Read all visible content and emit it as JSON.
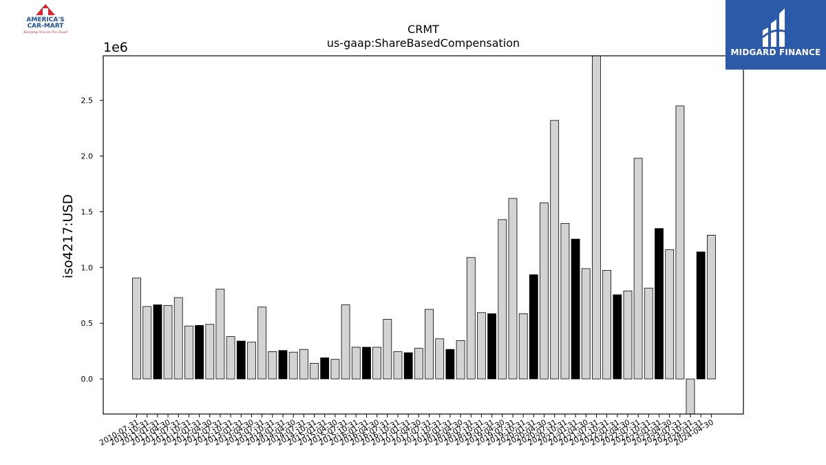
{
  "chart_data": {
    "type": "bar",
    "title": "CRMT",
    "subtitle": "us-gaap:ShareBasedCompensation",
    "ylabel": "iso4217:USD",
    "y_multiplier_label": "1e6",
    "ylim": [
      -315000,
      2900000
    ],
    "y_ticks": [
      0.0,
      0.5,
      1.0,
      1.5,
      2.0,
      2.5
    ],
    "categories": [
      "2010-07-31",
      "2010-10-31",
      "2011-01-31",
      "2011-04-30",
      "2011-07-31",
      "2011-10-31",
      "2012-01-31",
      "2012-04-30",
      "2012-07-31",
      "2012-10-31",
      "2013-01-31",
      "2013-04-30",
      "2013-07-31",
      "2013-10-31",
      "2014-01-31",
      "2014-04-30",
      "2014-07-31",
      "2014-10-31",
      "2015-01-31",
      "2015-04-30",
      "2015-07-31",
      "2015-10-31",
      "2016-01-31",
      "2016-04-30",
      "2016-07-31",
      "2016-10-31",
      "2017-01-31",
      "2017-04-30",
      "2017-07-31",
      "2017-10-31",
      "2018-01-31",
      "2018-04-30",
      "2018-07-31",
      "2018-10-31",
      "2019-01-31",
      "2019-04-30",
      "2019-07-31",
      "2019-10-31",
      "2020-01-31",
      "2020-04-30",
      "2020-07-31",
      "2020-10-31",
      "2021-01-31",
      "2021-04-30",
      "2021-07-31",
      "2021-10-31",
      "2022-01-31",
      "2022-04-30",
      "2022-07-31",
      "2022-10-31",
      "2023-01-31",
      "2023-04-30",
      "2023-07-31",
      "2023-10-31",
      "2024-01-31",
      "2024-04-30"
    ],
    "values": [
      905000,
      650000,
      665000,
      660000,
      730000,
      475000,
      480000,
      490000,
      805000,
      380000,
      340000,
      330000,
      645000,
      245000,
      255000,
      240000,
      265000,
      140000,
      190000,
      175000,
      665000,
      285000,
      285000,
      285000,
      535000,
      245000,
      235000,
      275000,
      625000,
      360000,
      265000,
      345000,
      1090000,
      595000,
      585000,
      1430000,
      1620000,
      585000,
      935000,
      1580000,
      2320000,
      1395000,
      1255000,
      990000,
      2900000,
      975000,
      755000,
      790000,
      1980000,
      815000,
      1350000,
      1160000,
      2450000,
      -315000,
      1140000,
      1290000
    ],
    "highlighted": [
      false,
      false,
      true,
      false,
      false,
      false,
      true,
      false,
      false,
      false,
      true,
      false,
      false,
      false,
      true,
      false,
      false,
      false,
      true,
      false,
      false,
      false,
      true,
      false,
      false,
      false,
      true,
      false,
      false,
      false,
      true,
      false,
      false,
      false,
      true,
      false,
      false,
      false,
      true,
      false,
      false,
      false,
      true,
      false,
      false,
      false,
      true,
      false,
      false,
      false,
      true,
      false,
      false,
      false,
      true,
      false
    ],
    "bar_color": "#d3d3d3",
    "highlight_color": "#000000",
    "edge_color": "#000000",
    "grid": false,
    "legend": "none"
  },
  "logos": {
    "left": {
      "line1": "AMERICA'S",
      "line2": "CAR-MART",
      "tagline": "Keeping You on the Road"
    },
    "right": {
      "name": "MIDGARD FINANCE",
      "background": "#2c5aa8"
    }
  }
}
